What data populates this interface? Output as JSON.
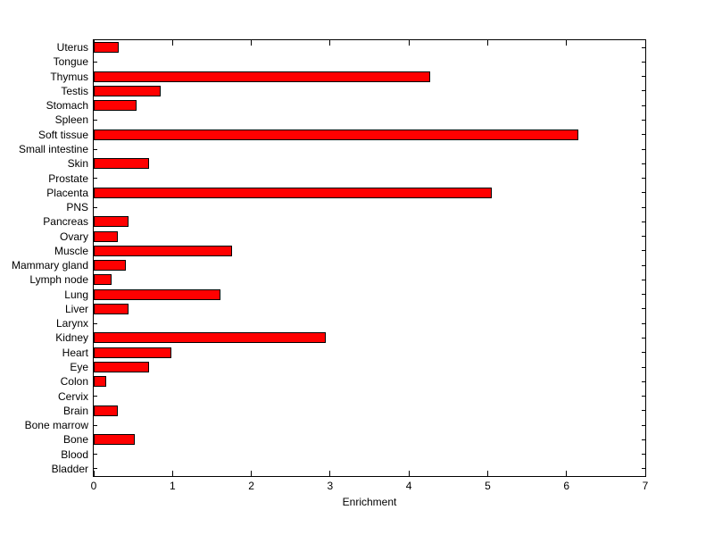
{
  "chart_data": {
    "type": "bar",
    "orientation": "horizontal",
    "title": "",
    "xlabel": "Enrichment",
    "ylabel": "",
    "xlim": [
      0,
      7
    ],
    "xticks": [
      0,
      1,
      2,
      3,
      4,
      5,
      6,
      7
    ],
    "grid": false,
    "legend": "none",
    "bar_color": "#ff0000",
    "bar_edge_color": "#000000",
    "axis_color": "#000000",
    "background_color": "#ffffff",
    "categories": [
      "Uterus",
      "Tongue",
      "Thymus",
      "Testis",
      "Stomach",
      "Spleen",
      "Soft tissue",
      "Small intestine",
      "Skin",
      "Prostate",
      "Placenta",
      "PNS",
      "Pancreas",
      "Ovary",
      "Muscle",
      "Mammary gland",
      "Lymph node",
      "Lung",
      "Liver",
      "Larynx",
      "Kidney",
      "Heart",
      "Eye",
      "Colon",
      "Cervix",
      "Brain",
      "Bone marrow",
      "Bone",
      "Blood",
      "Bladder"
    ],
    "values": [
      0.32,
      0,
      4.27,
      0.85,
      0.54,
      0,
      6.15,
      0,
      0.7,
      0,
      5.05,
      0,
      0.44,
      0.31,
      1.76,
      0.41,
      0.23,
      1.61,
      0.44,
      0,
      2.94,
      0.99,
      0.7,
      0.16,
      0,
      0.31,
      0,
      0.52,
      0,
      0
    ]
  }
}
